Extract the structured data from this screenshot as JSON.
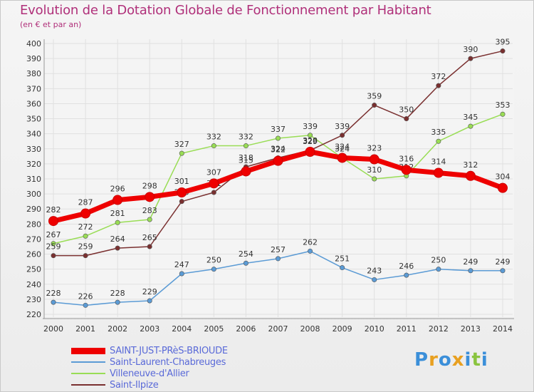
{
  "header": {
    "title": "Evolution de la Dotation Globale de Fonctionnement par Habitant",
    "subtitle": "(en € et par an)"
  },
  "logo": {
    "text": "Proxiti",
    "colors": [
      "#3b8fd9",
      "#e8a020",
      "#3b8fd9",
      "#e8a020",
      "#3b8fd9",
      "#8ac43f",
      "#3b8fd9"
    ]
  },
  "chart_data": {
    "type": "line",
    "x": [
      2000,
      2001,
      2002,
      2003,
      2004,
      2005,
      2006,
      2007,
      2008,
      2009,
      2010,
      2011,
      2012,
      2013,
      2014
    ],
    "ylim": [
      220,
      400
    ],
    "y_ticks": [
      220,
      230,
      240,
      250,
      260,
      270,
      280,
      290,
      300,
      310,
      320,
      330,
      340,
      350,
      360,
      370,
      380,
      390,
      400
    ],
    "grid": true,
    "legend_position": "bottom-left",
    "series": [
      {
        "name": "Saint-Laurent-Chabreuges",
        "color": "#5b9bd5",
        "values": [
          228,
          226,
          228,
          229,
          247,
          250,
          254,
          257,
          262,
          251,
          243,
          246,
          250,
          249,
          249
        ],
        "labels": [
          "228",
          "226",
          "228",
          "229",
          "247",
          "250",
          "254",
          "257",
          "262",
          "251",
          "243",
          "246",
          "250",
          "249",
          "249"
        ]
      },
      {
        "name": "Villeneuve-d'Allier",
        "color": "#99dd55",
        "values": [
          267,
          272,
          281,
          283,
          327,
          332,
          332,
          337,
          339,
          324,
          310,
          312,
          335,
          345,
          353
        ],
        "labels": [
          "267",
          "272",
          "281",
          "283",
          "327",
          "332",
          "332",
          "337",
          "339",
          "324",
          "310",
          "312",
          "335",
          "345",
          "353"
        ]
      },
      {
        "name": "Saint-Ilpize",
        "color": "#7a3030",
        "values": [
          259,
          259,
          264,
          265,
          295,
          301,
          318,
          324,
          329,
          339,
          359,
          350,
          372,
          390,
          395
        ],
        "labels": [
          "259",
          "259",
          "264",
          "265",
          "295",
          "301",
          "318",
          "324",
          "329",
          "339",
          "359",
          "350",
          "372",
          "390",
          "395"
        ]
      },
      {
        "name": "SAINT-JUST-PRèS-BRIOUDE",
        "color": "#ee0000",
        "values": [
          282,
          287,
          296,
          298,
          301,
          307,
          315,
          322,
          328,
          324,
          323,
          316,
          314,
          312,
          304
        ],
        "labels": [
          "282",
          "287",
          "296",
          "298",
          "301",
          "307",
          "315",
          "322",
          "328",
          "324",
          "323",
          "316",
          "314",
          "312",
          "304"
        ]
      }
    ]
  },
  "legend": [
    {
      "label": "SAINT-JUST-PRèS-BRIOUDE",
      "color": "#ee0000",
      "thick": true
    },
    {
      "label": "Saint-Laurent-Chabreuges",
      "color": "#5b9bd5",
      "thick": false
    },
    {
      "label": "Villeneuve-d'Allier",
      "color": "#99dd55",
      "thick": false
    },
    {
      "label": "Saint-Ilpize",
      "color": "#7a3030",
      "thick": false
    }
  ]
}
